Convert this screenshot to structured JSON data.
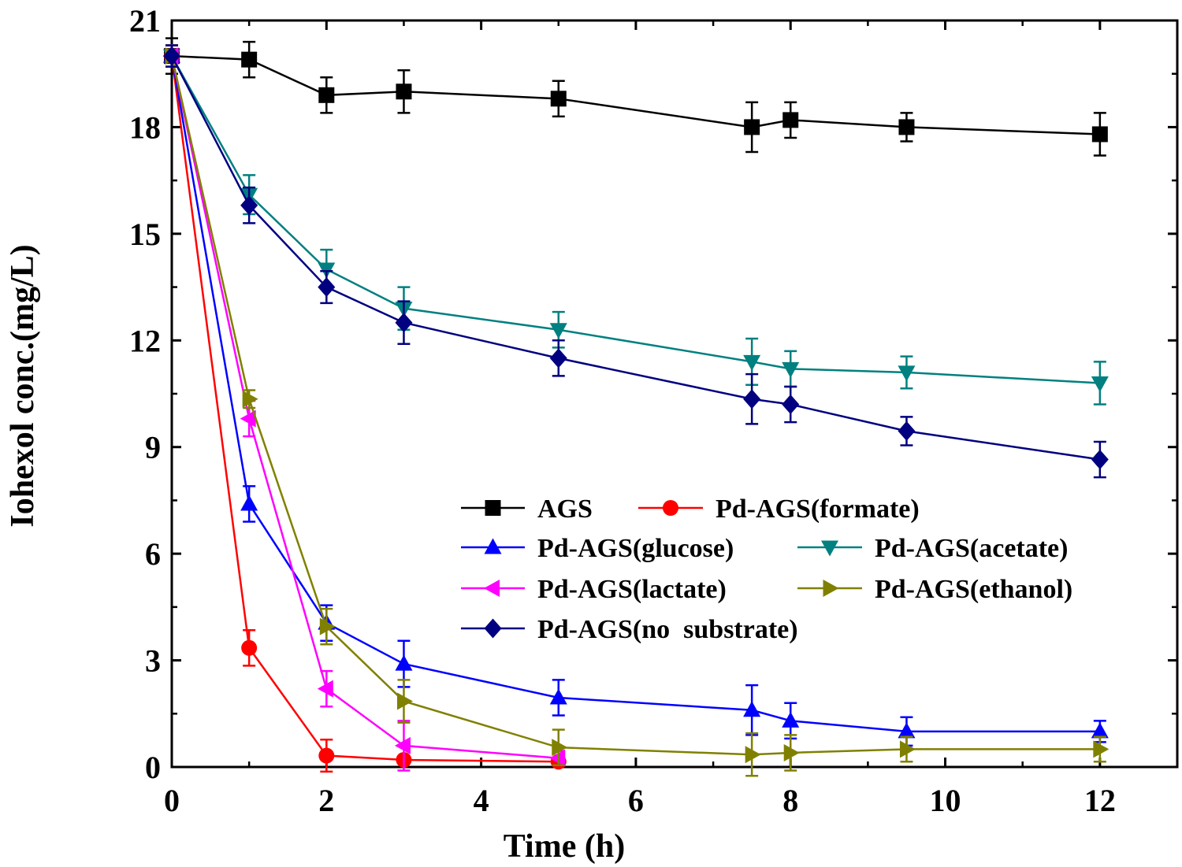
{
  "chart_data": {
    "type": "line",
    "title": "",
    "xlabel": "Time (h)",
    "ylabel": "Iohexol conc.(mg/L)",
    "xlim": [
      0,
      13
    ],
    "ylim": [
      0,
      21
    ],
    "xticks": [
      0,
      2,
      4,
      6,
      8,
      10,
      12
    ],
    "yticks": [
      0,
      3,
      6,
      9,
      12,
      15,
      18,
      21
    ],
    "grid": false,
    "legend_position": "center-right",
    "series": [
      {
        "name": "AGS",
        "color": "#000000",
        "marker": "square",
        "x": [
          0,
          1,
          2,
          3,
          5,
          7.5,
          8,
          9.5,
          12
        ],
        "y": [
          20.0,
          19.9,
          18.9,
          19.0,
          18.8,
          18.0,
          18.2,
          18.0,
          17.8
        ],
        "err": [
          0.5,
          0.5,
          0.5,
          0.6,
          0.5,
          0.7,
          0.5,
          0.4,
          0.6
        ]
      },
      {
        "name": "Pd-AGS(formate)",
        "color": "#ff0000",
        "marker": "circle",
        "x": [
          0,
          1,
          2,
          3,
          5
        ],
        "y": [
          20.0,
          3.35,
          0.32,
          0.2,
          0.15
        ],
        "err": [
          0.3,
          0.5,
          0.45,
          0.1,
          0.1
        ]
      },
      {
        "name": "Pd-AGS(glucose)",
        "color": "#0000ff",
        "marker": "triangle-up",
        "x": [
          0,
          1,
          2,
          3,
          5,
          7.5,
          8,
          9.5,
          12
        ],
        "y": [
          20.0,
          7.4,
          4.05,
          2.9,
          1.95,
          1.6,
          1.3,
          1.0,
          1.0
        ],
        "err": [
          0.3,
          0.5,
          0.5,
          0.65,
          0.5,
          0.7,
          0.5,
          0.4,
          0.3
        ]
      },
      {
        "name": "Pd-AGS(acetate)",
        "color": "#008080",
        "marker": "triangle-down",
        "x": [
          0,
          1,
          2,
          3,
          5,
          7.5,
          8,
          9.5,
          12
        ],
        "y": [
          20.0,
          16.1,
          14.0,
          12.9,
          12.3,
          11.4,
          11.2,
          11.1,
          10.8
        ],
        "err": [
          0.3,
          0.55,
          0.55,
          0.6,
          0.5,
          0.65,
          0.5,
          0.45,
          0.6
        ]
      },
      {
        "name": "Pd-AGS(lactate)",
        "color": "#ff00ff",
        "marker": "triangle-left",
        "x": [
          0,
          1,
          2,
          3,
          5
        ],
        "y": [
          20.0,
          9.8,
          2.2,
          0.6,
          0.25
        ],
        "err": [
          0.3,
          0.5,
          0.5,
          0.7,
          0.2
        ]
      },
      {
        "name": "Pd-AGS(ethanol)",
        "color": "#808000",
        "marker": "triangle-right",
        "x": [
          0,
          1,
          2,
          3,
          5,
          7.5,
          8,
          9.5,
          12
        ],
        "y": [
          20.0,
          10.35,
          3.95,
          1.85,
          0.55,
          0.35,
          0.4,
          0.5,
          0.5
        ],
        "err": [
          0.3,
          0.25,
          0.5,
          0.6,
          0.5,
          0.6,
          0.5,
          0.35,
          0.35
        ]
      },
      {
        "name": "Pd-AGS(no  substrate)",
        "color": "#000080",
        "marker": "diamond",
        "x": [
          0,
          1,
          2,
          3,
          5,
          7.5,
          8,
          9.5,
          12
        ],
        "y": [
          20.0,
          15.8,
          13.5,
          12.5,
          11.5,
          10.35,
          10.2,
          9.45,
          8.65
        ],
        "err": [
          0.3,
          0.5,
          0.45,
          0.6,
          0.5,
          0.7,
          0.5,
          0.4,
          0.5
        ]
      }
    ]
  }
}
